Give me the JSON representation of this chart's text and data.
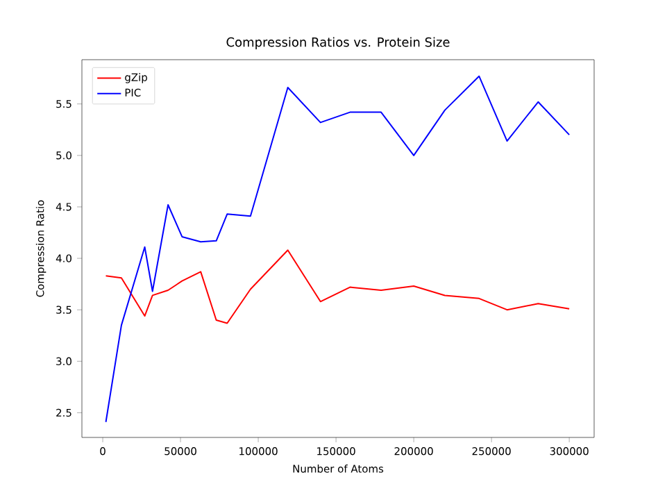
{
  "chart_data": {
    "type": "line",
    "title": "Compression Ratios vs. Protein Size",
    "xlabel": "Number of Atoms",
    "ylabel": "Compression Ratio",
    "x": [
      2000,
      12000,
      27000,
      32000,
      42000,
      51000,
      63000,
      73000,
      80000,
      95000,
      119000,
      140000,
      159000,
      179000,
      200000,
      220000,
      242000,
      260000,
      280000,
      300000
    ],
    "series": [
      {
        "name": "gZip",
        "color": "#ff0000",
        "values": [
          3.83,
          3.81,
          3.44,
          3.64,
          3.69,
          3.78,
          3.87,
          3.4,
          3.37,
          3.7,
          4.08,
          3.58,
          3.72,
          3.69,
          3.73,
          3.64,
          3.61,
          3.5,
          3.56,
          3.51
        ]
      },
      {
        "name": "PIC",
        "color": "#0000ff",
        "values": [
          2.41,
          3.35,
          4.11,
          3.68,
          4.52,
          4.21,
          4.16,
          4.17,
          4.43,
          4.41,
          5.66,
          5.32,
          5.42,
          5.42,
          5.0,
          5.44,
          5.77,
          5.14,
          5.52,
          5.2
        ]
      }
    ],
    "xlim": [
      -13400,
      316000
    ],
    "ylim": [
      2.26,
      5.93
    ],
    "xticks": [
      0,
      50000,
      100000,
      150000,
      200000,
      250000,
      300000
    ],
    "yticks": [
      2.5,
      {
        "value": 3,
        "label": "3.0"
      },
      3.5,
      {
        "value": 4,
        "label": "4.0"
      },
      4.5,
      {
        "value": 5,
        "label": "5.0"
      },
      5.5
    ],
    "grid": false,
    "legend": "top left",
    "marker": "none",
    "line_style": "solid"
  }
}
